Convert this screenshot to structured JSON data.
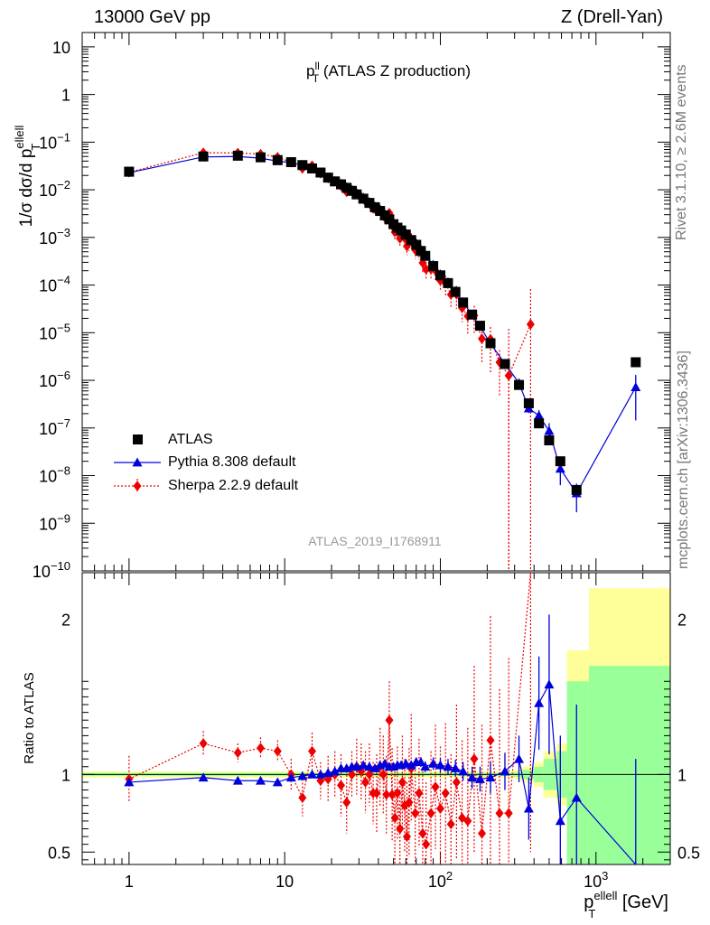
{
  "header": {
    "left": "13000 GeV pp",
    "right": "Z (Drell-Yan)",
    "rivet": "Rivet 3.1.10, ≥ 2.6M events",
    "mcplots": "mcplots.cern.ch [arXiv:1306.3436]"
  },
  "chart_data": {
    "type": "scatter",
    "title_main": "p",
    "title_sup": "ll",
    "title_sub": "T",
    "title_rest": " (ATLAS Z production)",
    "analysis": "ATLAS_2019_I1768911",
    "xlabel": {
      "main": "p",
      "sup": "ellell",
      "sub": "T",
      "unit": " [GeV]"
    },
    "ylabel_top": {
      "pre": "1/σ dσ/d p",
      "sup": "ellell",
      "sub": "T"
    },
    "ylabel_bottom": "Ratio to ATLAS",
    "xscale": "log",
    "xlim": [
      0.5,
      3000
    ],
    "top": {
      "yscale": "log",
      "ylim": [
        1e-10,
        20
      ]
    },
    "bottom": {
      "ylim": [
        0.42,
        2.3
      ],
      "yticks": [
        0.5,
        1,
        2
      ]
    },
    "xtick_labels": [
      "1",
      "10",
      "10",
      "10"
    ],
    "xtick_exps": [
      "",
      "",
      "2",
      "3"
    ],
    "ytick_labels_top": [
      "10",
      "1",
      "10",
      "10",
      "10",
      "10",
      "10",
      "10",
      "10",
      "10",
      "10",
      "10"
    ],
    "ytick_exps_top": [
      "",
      "",
      "−1",
      "−2",
      "−3",
      "−4",
      "−5",
      "−6",
      "−7",
      "−8",
      "−9",
      "−10"
    ],
    "ytick_labels_bottom": [
      "0.5",
      "1",
      "2"
    ],
    "legend": [
      {
        "name": "ATLAS",
        "color": "#000000",
        "marker": "square"
      },
      {
        "name": "Pythia 8.308 default",
        "color": "#0000dd",
        "marker": "triangle"
      },
      {
        "name": "Sherpa 2.2.9 default",
        "color": "#ee0000",
        "marker": "diamond"
      }
    ],
    "atlas": {
      "x": [
        1,
        3,
        5,
        7,
        9,
        11,
        13,
        15,
        17,
        19,
        21,
        23,
        25,
        27,
        29,
        32,
        35,
        38,
        41,
        44,
        47,
        50,
        53,
        56,
        60,
        65,
        70,
        75,
        80,
        90,
        100,
        112,
        125,
        140,
        160,
        180,
        210,
        260,
        320,
        370,
        430,
        500,
        590,
        750,
        1800
      ],
      "y": [
        0.024,
        0.05,
        0.052,
        0.048,
        0.042,
        0.038,
        0.033,
        0.028,
        0.023,
        0.018,
        0.015,
        0.013,
        0.011,
        0.0095,
        0.008,
        0.0065,
        0.0053,
        0.0043,
        0.0036,
        0.0029,
        0.0024,
        0.0019,
        0.0016,
        0.0014,
        0.00115,
        0.00088,
        0.0007,
        0.00052,
        0.00041,
        0.00025,
        0.00016,
        0.00011,
        7.2e-05,
        4.3e-05,
        2.4e-05,
        1.4e-05,
        6e-06,
        2.2e-06,
        8e-07,
        3.3e-07,
        1.25e-07,
        5.5e-08,
        2e-08,
        5e-09,
        2.4e-06
      ],
      "band_edges": [
        0.5,
        290,
        330,
        400,
        460,
        560,
        650,
        900,
        3000
      ],
      "band_yellow": [
        0.02,
        0.03,
        0.05,
        0.08,
        0.15,
        0.2,
        0.8,
        1.2
      ],
      "band_green": [
        0.01,
        0.015,
        0.03,
        0.05,
        0.1,
        0.15,
        0.6,
        0.7
      ]
    },
    "pythia": {
      "x": [
        1,
        3,
        5,
        7,
        9,
        11,
        13,
        15,
        17,
        19,
        21,
        23,
        25,
        27,
        29,
        32,
        35,
        38,
        41,
        44,
        47,
        50,
        53,
        56,
        60,
        65,
        70,
        75,
        80,
        90,
        100,
        112,
        125,
        140,
        160,
        180,
        210,
        260,
        320,
        370,
        430,
        500,
        590,
        750,
        1800
      ],
      "ratio": [
        0.95,
        0.98,
        0.96,
        0.96,
        0.95,
        0.98,
        0.99,
        1.0,
        1.0,
        1.01,
        1.02,
        1.04,
        1.04,
        1.05,
        1.05,
        1.06,
        1.05,
        1.04,
        1.06,
        1.07,
        1.05,
        1.05,
        1.06,
        1.06,
        1.07,
        1.06,
        1.08,
        1.08,
        1.05,
        1.07,
        1.06,
        1.05,
        1.04,
        1.02,
        0.98,
        0.97,
        0.98,
        1.02,
        1.1,
        0.78,
        1.46,
        1.58,
        0.7,
        0.85,
        0.3
      ],
      "err": [
        0.005,
        0.005,
        0.005,
        0.005,
        0.005,
        0.006,
        0.006,
        0.006,
        0.007,
        0.007,
        0.008,
        0.008,
        0.009,
        0.01,
        0.01,
        0.011,
        0.012,
        0.013,
        0.014,
        0.016,
        0.018,
        0.02,
        0.022,
        0.024,
        0.026,
        0.028,
        0.03,
        0.032,
        0.035,
        0.04,
        0.045,
        0.05,
        0.055,
        0.06,
        0.07,
        0.08,
        0.1,
        0.12,
        0.15,
        0.2,
        0.3,
        0.45,
        0.55,
        0.6,
        0.8
      ]
    },
    "sherpa": {
      "x": [
        1,
        3,
        5,
        7,
        9,
        11,
        13,
        15,
        17,
        19,
        21,
        23,
        25,
        27,
        29,
        31,
        33,
        35,
        37,
        39,
        41,
        43,
        45,
        47,
        49,
        51,
        53,
        55,
        57,
        59,
        61,
        63,
        65,
        69,
        73,
        77,
        81,
        87,
        93,
        100,
        108,
        117,
        127,
        138,
        150,
        165,
        185,
        210,
        240,
        275,
        380
      ],
      "ratio": [
        0.97,
        1.2,
        1.14,
        1.17,
        1.15,
        1.0,
        0.85,
        1.15,
        0.96,
        0.97,
        1.0,
        0.93,
        0.82,
        1.0,
        1.05,
        1.02,
        0.95,
        1.0,
        0.88,
        0.88,
        1.05,
        1.0,
        0.87,
        1.35,
        0.87,
        0.72,
        0.88,
        0.65,
        0.95,
        0.8,
        0.6,
        0.82,
        1.04,
        0.75,
        0.88,
        0.62,
        0.55,
        0.75,
        0.92,
        0.78,
        0.88,
        0.68,
        0.95,
        0.72,
        0.7,
        1.1,
        0.62,
        1.22,
        0.75,
        0.75,
        5.0
      ],
      "err": [
        0.15,
        0.08,
        0.06,
        0.07,
        0.07,
        0.1,
        0.12,
        0.12,
        0.12,
        0.15,
        0.15,
        0.2,
        0.2,
        0.15,
        0.18,
        0.18,
        0.2,
        0.2,
        0.2,
        0.25,
        0.25,
        0.25,
        0.25,
        0.25,
        0.3,
        0.3,
        0.3,
        0.3,
        0.3,
        0.3,
        0.35,
        0.35,
        0.35,
        0.35,
        0.35,
        0.4,
        0.4,
        0.4,
        0.4,
        0.4,
        0.45,
        0.45,
        0.5,
        0.5,
        0.6,
        0.6,
        0.7,
        0.8,
        0.8,
        1.0,
        4.5
      ]
    }
  }
}
